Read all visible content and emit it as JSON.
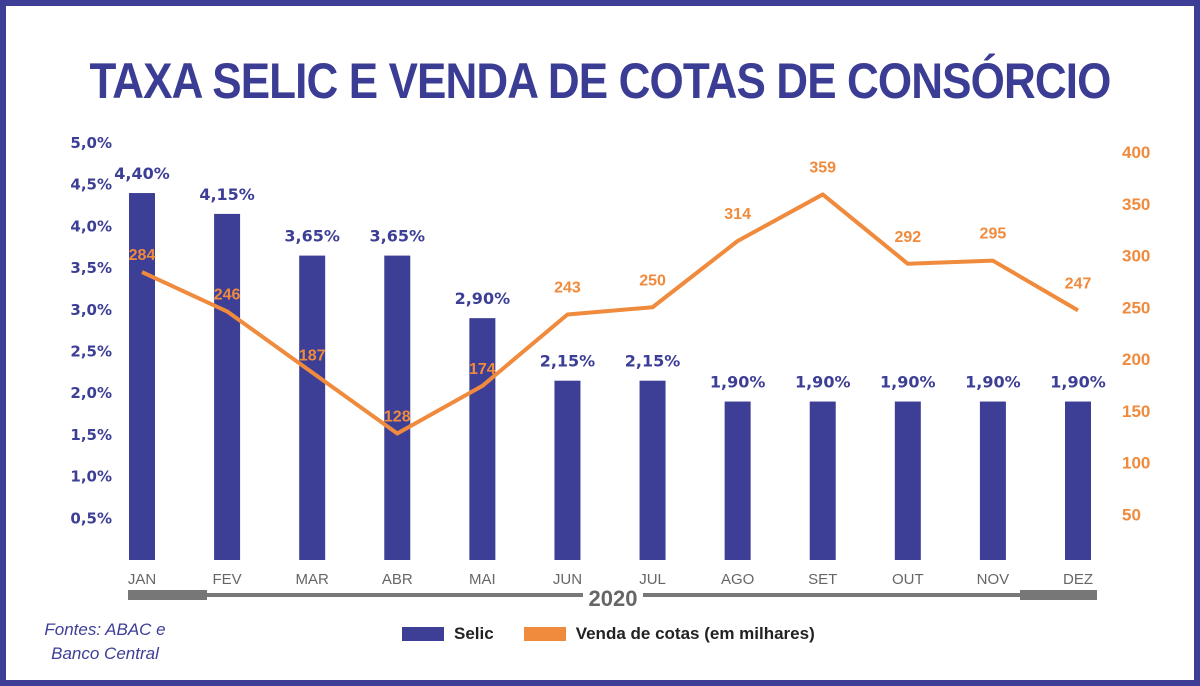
{
  "chart_data": {
    "type": "bar+line",
    "title": "TAXA SELIC E VENDA DE COTAS DE CONSÓRCIO",
    "categories": [
      "JAN",
      "FEV",
      "MAR",
      "ABR",
      "MAI",
      "JUN",
      "JUL",
      "AGO",
      "SET",
      "OUT",
      "NOV",
      "DEZ"
    ],
    "year_label": "2020",
    "series": [
      {
        "name": "Selic",
        "type": "bar",
        "axis": "left",
        "color": "#3d3f96",
        "values": [
          4.4,
          4.15,
          3.65,
          3.65,
          2.9,
          2.15,
          2.15,
          1.9,
          1.9,
          1.9,
          1.9,
          1.9
        ],
        "labels": [
          "4,40%",
          "4,15%",
          "3,65%",
          "3,65%",
          "2,90%",
          "2,15%",
          "2,15%",
          "1,90%",
          "1,90%",
          "1,90%",
          "1,90%",
          "1,90%"
        ]
      },
      {
        "name": "Venda de cotas (em milhares)",
        "type": "line",
        "axis": "right",
        "color": "#f08a3c",
        "values": [
          284,
          246,
          187,
          128,
          174,
          243,
          250,
          314,
          359,
          292,
          295,
          247
        ],
        "labels": [
          "284",
          "246",
          "187",
          "128",
          "174",
          "243",
          "250",
          "314",
          "359",
          "292",
          "295",
          "247"
        ]
      }
    ],
    "left_axis": {
      "range": [
        0,
        5.0
      ],
      "ticks": [
        "0,5%",
        "1,0%",
        "1,5%",
        "2,0%",
        "2,5%",
        "3,0%",
        "3,5%",
        "4,0%",
        "4,5%",
        "5,0%"
      ],
      "tick_values": [
        0.5,
        1,
        1.5,
        2,
        2.5,
        3,
        3.5,
        4,
        4.5,
        5
      ]
    },
    "right_axis": {
      "range": [
        0,
        400
      ],
      "ticks": [
        "50",
        "100",
        "150",
        "200",
        "250",
        "300",
        "350",
        "400"
      ],
      "tick_values": [
        50,
        100,
        150,
        200,
        250,
        300,
        350,
        400
      ]
    },
    "grid": false,
    "legend_position": "bottom"
  },
  "source": {
    "line1": "Fontes: ABAC e",
    "line2": "Banco Central"
  },
  "colors": {
    "frame": "#3d3f96",
    "bar": "#3d3f96",
    "line": "#f08a3c",
    "timeline": "#777777"
  }
}
